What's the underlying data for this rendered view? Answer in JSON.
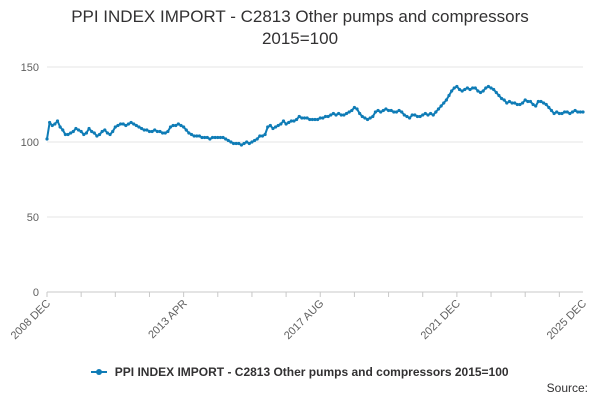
{
  "chart_data": {
    "type": "line",
    "title_lines": [
      "PPI INDEX IMPORT - C2813 Other pumps and compressors",
      "2015=100"
    ],
    "xlabel": "",
    "ylabel": "",
    "x_start": "2008-12",
    "x_end": "2025-12",
    "x_ticks": [
      "2008 DEC",
      "2013 APR",
      "2017 AUG",
      "2021 DEC",
      "2025 DEC"
    ],
    "y_ticks": [
      0,
      50,
      100,
      150
    ],
    "ylim": [
      0,
      150
    ],
    "grid": "horizontal",
    "legend_position": "bottom",
    "series": [
      {
        "name": "PPI INDEX IMPORT - C2813 Other pumps and compressors 2015=100",
        "color": "#0F7CB6",
        "points": [
          [
            "2008-12",
            102
          ],
          [
            "2009-01",
            113
          ],
          [
            "2009-02",
            111
          ],
          [
            "2009-03",
            112
          ],
          [
            "2009-04",
            114
          ],
          [
            "2009-05",
            110
          ],
          [
            "2009-06",
            108
          ],
          [
            "2009-07",
            105
          ],
          [
            "2009-08",
            105
          ],
          [
            "2009-09",
            106
          ],
          [
            "2009-10",
            107
          ],
          [
            "2009-11",
            109
          ],
          [
            "2009-12",
            108
          ],
          [
            "2010-01",
            107
          ],
          [
            "2010-02",
            105
          ],
          [
            "2010-03",
            106
          ],
          [
            "2010-04",
            109
          ],
          [
            "2010-05",
            107
          ],
          [
            "2010-06",
            106
          ],
          [
            "2010-07",
            104
          ],
          [
            "2010-08",
            105
          ],
          [
            "2010-09",
            107
          ],
          [
            "2010-10",
            108
          ],
          [
            "2010-11",
            106
          ],
          [
            "2010-12",
            105
          ],
          [
            "2011-01",
            107
          ],
          [
            "2011-02",
            110
          ],
          [
            "2011-03",
            111
          ],
          [
            "2011-04",
            112
          ],
          [
            "2011-05",
            112
          ],
          [
            "2011-06",
            111
          ],
          [
            "2011-07",
            112
          ],
          [
            "2011-08",
            113
          ],
          [
            "2011-09",
            112
          ],
          [
            "2011-10",
            111
          ],
          [
            "2011-11",
            110
          ],
          [
            "2011-12",
            109
          ],
          [
            "2012-01",
            108
          ],
          [
            "2012-02",
            108
          ],
          [
            "2012-03",
            107
          ],
          [
            "2012-04",
            107
          ],
          [
            "2012-05",
            108
          ],
          [
            "2012-06",
            107
          ],
          [
            "2012-07",
            107
          ],
          [
            "2012-08",
            106
          ],
          [
            "2012-09",
            106
          ],
          [
            "2012-10",
            107
          ],
          [
            "2012-11",
            110
          ],
          [
            "2012-12",
            111
          ],
          [
            "2013-01",
            111
          ],
          [
            "2013-02",
            112
          ],
          [
            "2013-03",
            111
          ],
          [
            "2013-04",
            110
          ],
          [
            "2013-05",
            108
          ],
          [
            "2013-06",
            106
          ],
          [
            "2013-07",
            105
          ],
          [
            "2013-08",
            104
          ],
          [
            "2013-09",
            104
          ],
          [
            "2013-10",
            104
          ],
          [
            "2013-11",
            103
          ],
          [
            "2013-12",
            103
          ],
          [
            "2014-01",
            103
          ],
          [
            "2014-02",
            102
          ],
          [
            "2014-03",
            103
          ],
          [
            "2014-04",
            103
          ],
          [
            "2014-05",
            103
          ],
          [
            "2014-06",
            103
          ],
          [
            "2014-07",
            103
          ],
          [
            "2014-08",
            102
          ],
          [
            "2014-09",
            101
          ],
          [
            "2014-10",
            100
          ],
          [
            "2014-11",
            99
          ],
          [
            "2014-12",
            99
          ],
          [
            "2015-01",
            99
          ],
          [
            "2015-02",
            98
          ],
          [
            "2015-03",
            99
          ],
          [
            "2015-04",
            100
          ],
          [
            "2015-05",
            99
          ],
          [
            "2015-06",
            100
          ],
          [
            "2015-07",
            101
          ],
          [
            "2015-08",
            102
          ],
          [
            "2015-09",
            104
          ],
          [
            "2015-10",
            104
          ],
          [
            "2015-11",
            105
          ],
          [
            "2015-12",
            110
          ],
          [
            "2016-01",
            111
          ],
          [
            "2016-02",
            109
          ],
          [
            "2016-03",
            110
          ],
          [
            "2016-04",
            111
          ],
          [
            "2016-05",
            112
          ],
          [
            "2016-06",
            114
          ],
          [
            "2016-07",
            112
          ],
          [
            "2016-08",
            113
          ],
          [
            "2016-09",
            114
          ],
          [
            "2016-10",
            114
          ],
          [
            "2016-11",
            115
          ],
          [
            "2016-12",
            117
          ],
          [
            "2017-01",
            116
          ],
          [
            "2017-02",
            116
          ],
          [
            "2017-03",
            116
          ],
          [
            "2017-04",
            115
          ],
          [
            "2017-05",
            115
          ],
          [
            "2017-06",
            115
          ],
          [
            "2017-07",
            115
          ],
          [
            "2017-08",
            116
          ],
          [
            "2017-09",
            116
          ],
          [
            "2017-10",
            117
          ],
          [
            "2017-11",
            117
          ],
          [
            "2017-12",
            118
          ],
          [
            "2018-01",
            119
          ],
          [
            "2018-02",
            118
          ],
          [
            "2018-03",
            119
          ],
          [
            "2018-04",
            118
          ],
          [
            "2018-05",
            118
          ],
          [
            "2018-06",
            119
          ],
          [
            "2018-07",
            120
          ],
          [
            "2018-08",
            121
          ],
          [
            "2018-09",
            123
          ],
          [
            "2018-10",
            122
          ],
          [
            "2018-11",
            119
          ],
          [
            "2018-12",
            117
          ],
          [
            "2019-01",
            116
          ],
          [
            "2019-02",
            115
          ],
          [
            "2019-03",
            116
          ],
          [
            "2019-04",
            117
          ],
          [
            "2019-05",
            120
          ],
          [
            "2019-06",
            121
          ],
          [
            "2019-07",
            120
          ],
          [
            "2019-08",
            121
          ],
          [
            "2019-09",
            122
          ],
          [
            "2019-10",
            121
          ],
          [
            "2019-11",
            121
          ],
          [
            "2019-12",
            120
          ],
          [
            "2020-01",
            120
          ],
          [
            "2020-02",
            121
          ],
          [
            "2020-03",
            120
          ],
          [
            "2020-04",
            118
          ],
          [
            "2020-05",
            117
          ],
          [
            "2020-06",
            116
          ],
          [
            "2020-07",
            118
          ],
          [
            "2020-08",
            118
          ],
          [
            "2020-09",
            117
          ],
          [
            "2020-10",
            117
          ],
          [
            "2020-11",
            118
          ],
          [
            "2020-12",
            119
          ],
          [
            "2021-01",
            118
          ],
          [
            "2021-02",
            119
          ],
          [
            "2021-03",
            118
          ],
          [
            "2021-04",
            120
          ],
          [
            "2021-05",
            122
          ],
          [
            "2021-06",
            124
          ],
          [
            "2021-07",
            126
          ],
          [
            "2021-08",
            128
          ],
          [
            "2021-09",
            131
          ],
          [
            "2021-10",
            134
          ],
          [
            "2021-11",
            136
          ],
          [
            "2021-12",
            137
          ],
          [
            "2022-01",
            135
          ],
          [
            "2022-02",
            134
          ],
          [
            "2022-03",
            135
          ],
          [
            "2022-04",
            136
          ],
          [
            "2022-05",
            135
          ],
          [
            "2022-06",
            136
          ],
          [
            "2022-07",
            136
          ],
          [
            "2022-08",
            134
          ],
          [
            "2022-09",
            133
          ],
          [
            "2022-10",
            134
          ],
          [
            "2022-11",
            136
          ],
          [
            "2022-12",
            137
          ],
          [
            "2023-01",
            136
          ],
          [
            "2023-02",
            135
          ],
          [
            "2023-03",
            133
          ],
          [
            "2023-04",
            131
          ],
          [
            "2023-05",
            129
          ],
          [
            "2023-06",
            128
          ],
          [
            "2023-07",
            126
          ],
          [
            "2023-08",
            127
          ],
          [
            "2023-09",
            126
          ],
          [
            "2023-10",
            126
          ],
          [
            "2023-11",
            125
          ],
          [
            "2023-12",
            125
          ],
          [
            "2024-01",
            126
          ],
          [
            "2024-02",
            128
          ],
          [
            "2024-03",
            127
          ],
          [
            "2024-04",
            127
          ],
          [
            "2024-05",
            125
          ],
          [
            "2024-06",
            124
          ],
          [
            "2024-07",
            127
          ],
          [
            "2024-08",
            127
          ],
          [
            "2024-09",
            126
          ],
          [
            "2024-10",
            125
          ],
          [
            "2024-11",
            123
          ],
          [
            "2024-12",
            121
          ],
          [
            "2025-01",
            119
          ],
          [
            "2025-02",
            120
          ],
          [
            "2025-03",
            119
          ],
          [
            "2025-04",
            119
          ],
          [
            "2025-05",
            120
          ],
          [
            "2025-06",
            120
          ],
          [
            "2025-07",
            119
          ],
          [
            "2025-08",
            120
          ],
          [
            "2025-09",
            121
          ],
          [
            "2025-10",
            120
          ],
          [
            "2025-11",
            120
          ],
          [
            "2025-12",
            120
          ]
        ]
      }
    ]
  },
  "source": {
    "label": "Source:"
  },
  "colors": {
    "series": "#0F7CB6",
    "grid": "#E6E6E6",
    "axis_text": "#606060",
    "text": "#323132"
  }
}
